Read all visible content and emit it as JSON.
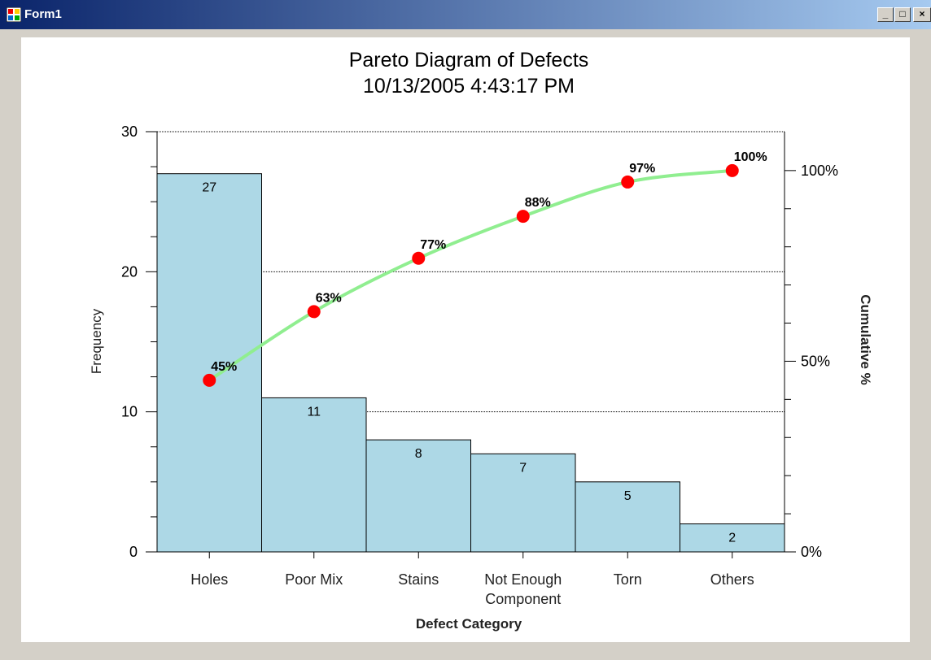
{
  "window": {
    "title": "Form1"
  },
  "chart_data": {
    "type": "pareto",
    "title": "Pareto Diagram of Defects",
    "subtitle": "10/13/2005 4:43:17 PM",
    "xlabel": "Defect Category",
    "ylabel": "Frequency",
    "y2label": "Cumulative %",
    "categories": [
      "Holes",
      "Poor Mix",
      "Stains",
      "Not Enough Component",
      "Torn",
      "Others"
    ],
    "series": [
      {
        "name": "Frequency",
        "color": "#add8e6",
        "values": [
          27,
          11,
          8,
          7,
          5,
          2
        ]
      },
      {
        "name": "Cumulative %",
        "color": "#90ee90",
        "marker_color": "#ff0000",
        "axis": "y2",
        "values": [
          45,
          63,
          77,
          88,
          97,
          100
        ],
        "value_labels": [
          "45%",
          "63%",
          "77%",
          "88%",
          "97%",
          "100%"
        ]
      }
    ],
    "ylim": [
      0,
      30
    ],
    "yticks": [
      0,
      10,
      20,
      30
    ],
    "yminorticks": [
      2.5,
      5,
      7.5,
      12.5,
      15,
      17.5,
      22.5,
      25,
      27.5
    ],
    "y2lim": [
      0,
      110.2
    ],
    "y2ticks": [
      {
        "value": 0,
        "label": "0%"
      },
      {
        "value": 50,
        "label": "50%"
      },
      {
        "value": 100,
        "label": "100%"
      }
    ],
    "y2minorticks": [
      10,
      20,
      30,
      40,
      60,
      70,
      80,
      90
    ],
    "grid": true
  }
}
